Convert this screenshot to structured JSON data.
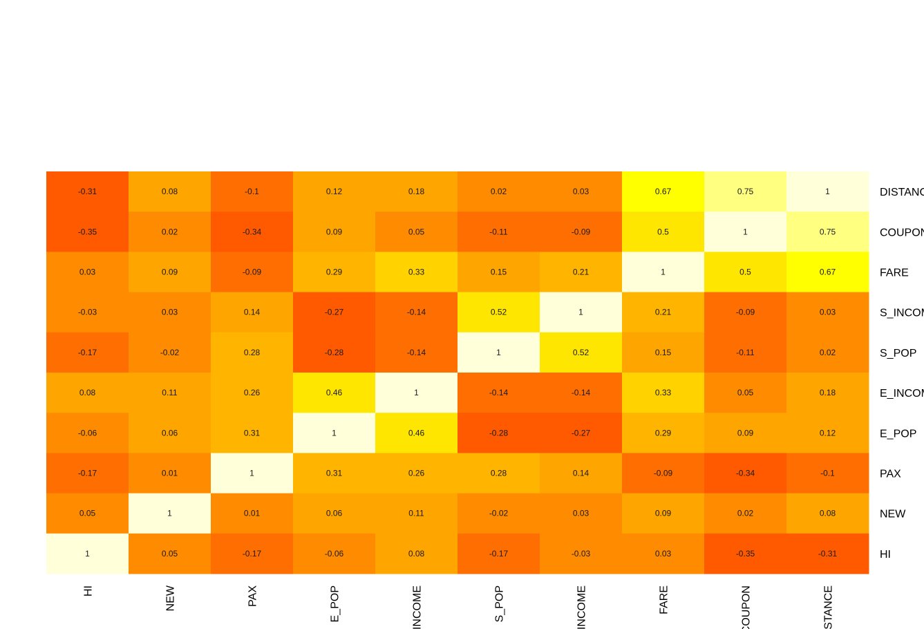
{
  "chart_data": {
    "type": "heatmap",
    "title": "",
    "xlabel": "",
    "ylabel": "",
    "legend": "none",
    "x_tick_labels": [
      "HI",
      "NEW",
      "PAX",
      "E_POP",
      "E_INCOME",
      "S_POP",
      "S_INCOME",
      "FARE",
      "COUPON",
      "DISTANCE"
    ],
    "y_tick_labels": [
      "DISTANCE",
      "COUPON",
      "FARE",
      "S_INCOME",
      "S_POP",
      "E_INCOME",
      "E_POP",
      "PAX",
      "NEW",
      "HI"
    ],
    "values": [
      [
        -0.31,
        0.08,
        -0.1,
        0.12,
        0.18,
        0.02,
        0.03,
        0.67,
        0.75,
        1
      ],
      [
        -0.35,
        0.02,
        -0.34,
        0.09,
        0.05,
        -0.11,
        -0.09,
        0.5,
        1,
        0.75
      ],
      [
        0.03,
        0.09,
        -0.09,
        0.29,
        0.33,
        0.15,
        0.21,
        1,
        0.5,
        0.67
      ],
      [
        -0.03,
        0.03,
        0.14,
        -0.27,
        -0.14,
        0.52,
        1,
        0.21,
        -0.09,
        0.03
      ],
      [
        -0.17,
        -0.02,
        0.28,
        -0.28,
        -0.14,
        1,
        0.52,
        0.15,
        -0.11,
        0.02
      ],
      [
        0.08,
        0.11,
        0.26,
        0.46,
        1,
        -0.14,
        -0.14,
        0.33,
        0.05,
        0.18
      ],
      [
        -0.06,
        0.06,
        0.31,
        1,
        0.46,
        -0.28,
        -0.27,
        0.29,
        0.09,
        0.12
      ],
      [
        -0.17,
        0.01,
        1,
        0.31,
        0.26,
        0.28,
        0.14,
        -0.09,
        -0.34,
        -0.1
      ],
      [
        0.05,
        1,
        0.01,
        0.06,
        0.11,
        -0.02,
        0.03,
        0.09,
        0.02,
        0.08
      ],
      [
        1,
        0.05,
        -0.17,
        -0.06,
        0.08,
        -0.17,
        -0.03,
        0.03,
        -0.35,
        -0.31
      ]
    ],
    "colormap": [
      "#ff5a00",
      "#ff6e00",
      "#ff8c00",
      "#ffa500",
      "#ffb400",
      "#ffd200",
      "#ffe600",
      "#ffff00",
      "#ffff80",
      "#ffffd9"
    ]
  }
}
